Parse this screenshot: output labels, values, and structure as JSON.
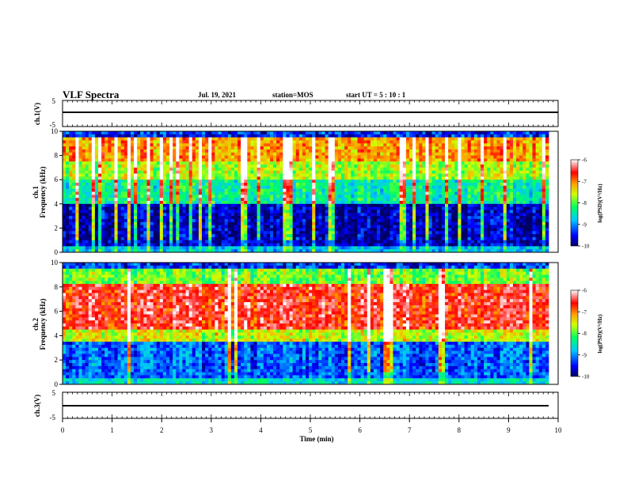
{
  "header": {
    "title": "VLF Spectra",
    "date": "Jul. 19, 2021",
    "station": "station=MOS",
    "start": "start UT =  5 : 10 : 1"
  },
  "chart_data": [
    {
      "type": "line",
      "ylabel": "ch.1(V)",
      "y_tick_labels": [
        "5",
        "-5"
      ],
      "ylim": [
        -5,
        5
      ],
      "x": [
        0,
        10
      ],
      "series": [
        {
          "values": [
            0,
            0
          ]
        }
      ]
    },
    {
      "type": "heatmap",
      "ylabel_top": "ch.1",
      "ylabel": "Frequency (kHz)",
      "ylim": [
        0,
        10
      ],
      "y_ticks": [
        "0",
        "2",
        "4",
        "6",
        "8",
        "10"
      ],
      "xlim": [
        0,
        10
      ],
      "colorbar": {
        "label": "log(PSD)(V²/Hz)",
        "ticks": [
          "-6",
          "-7",
          "-8",
          "-9",
          "-10"
        ],
        "range": [
          -10,
          -6
        ]
      }
    },
    {
      "type": "heatmap",
      "ylabel_top": "ch.2",
      "ylabel": "Frequency (kHz)",
      "ylim": [
        0,
        10
      ],
      "y_ticks": [
        "0",
        "2",
        "4",
        "6",
        "8",
        "10"
      ],
      "xlim": [
        0,
        10
      ],
      "colorbar": {
        "label": "log(PSD)(V²/Hz)",
        "ticks": [
          "-6",
          "-7",
          "-8",
          "-9",
          "-10"
        ],
        "range": [
          -10,
          -6
        ]
      }
    },
    {
      "type": "line",
      "ylabel": "ch.3(V)",
      "y_tick_labels": [
        "5",
        "-5"
      ],
      "ylim": [
        -5,
        5
      ],
      "x": [
        0,
        10
      ],
      "series": [
        {
          "values": [
            0,
            0
          ]
        }
      ]
    }
  ],
  "x_axis": {
    "label": "Time (min)",
    "ticks": [
      "0",
      "1",
      "2",
      "3",
      "4",
      "5",
      "6",
      "7",
      "8",
      "9",
      "10"
    ],
    "range": [
      0,
      10
    ]
  },
  "colors": {
    "scale": [
      "#000080",
      "#0000ff",
      "#00c0ff",
      "#00ff80",
      "#ffff00",
      "#ff8000",
      "#ff0000",
      "#ffc0c0"
    ],
    "frame": "#000000"
  }
}
